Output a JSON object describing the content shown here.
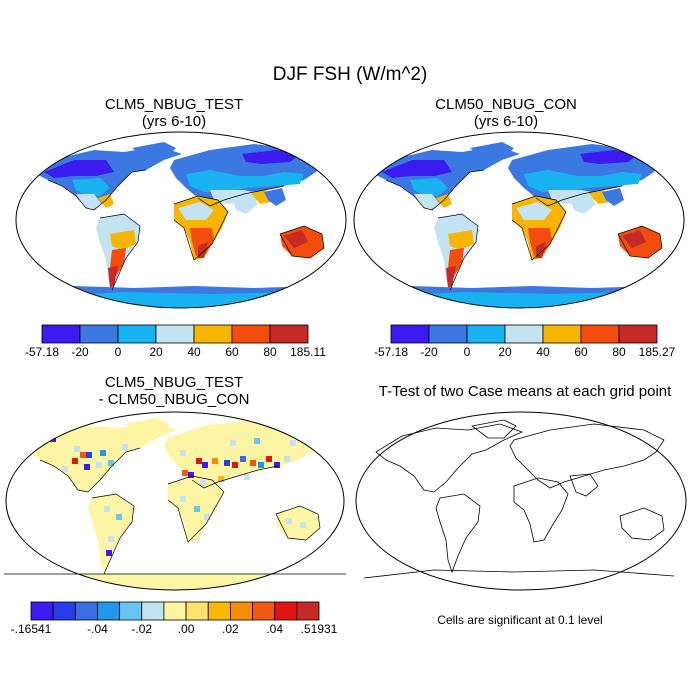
{
  "title": "DJF FSH (W/m^2)",
  "panels": [
    {
      "id": "test",
      "title_line1": "CLM5_NBUG_TEST",
      "title_line2": "(yrs 6-10)",
      "colorbar": {
        "labels": [
          "-57.18",
          "-20",
          "0",
          "20",
          "40",
          "60",
          "80",
          "185.11"
        ],
        "colors": [
          "#3b1bf0",
          "#3b78e2",
          "#19b2f0",
          "#c3e2f2",
          "#f6b500",
          "#f24d0c",
          "#c62a26"
        ]
      }
    },
    {
      "id": "con",
      "title_line1": "CLM50_NBUG_CON",
      "title_line2": "(yrs 6-10)",
      "colorbar": {
        "labels": [
          "-57.18",
          "-20",
          "0",
          "20",
          "40",
          "60",
          "80",
          "185.27"
        ],
        "colors": [
          "#3b1bf0",
          "#3b78e2",
          "#19b2f0",
          "#c3e2f2",
          "#f6b500",
          "#f24d0c",
          "#c62a26"
        ]
      }
    },
    {
      "id": "diff",
      "title_line1": "CLM5_NBUG_TEST",
      "title_line2": "- CLM50_NBUG_CON",
      "colorbar": {
        "labels": [
          "-.16541",
          "-.04",
          "-.02",
          ".00",
          ".02",
          ".04",
          ".51931"
        ],
        "colors": [
          "#3b1bf0",
          "#2a3be8",
          "#3b6ee0",
          "#2196ee",
          "#66c6f2",
          "#c3e2f2",
          "#fdf5a3",
          "#fde26e",
          "#f8b900",
          "#f48e00",
          "#f05a10",
          "#e01412",
          "#c62a26"
        ]
      }
    },
    {
      "id": "ttest",
      "title_line1": "T-Test of two Case means at each grid point",
      "note": "Cells are significant at 0.1 level"
    }
  ]
}
